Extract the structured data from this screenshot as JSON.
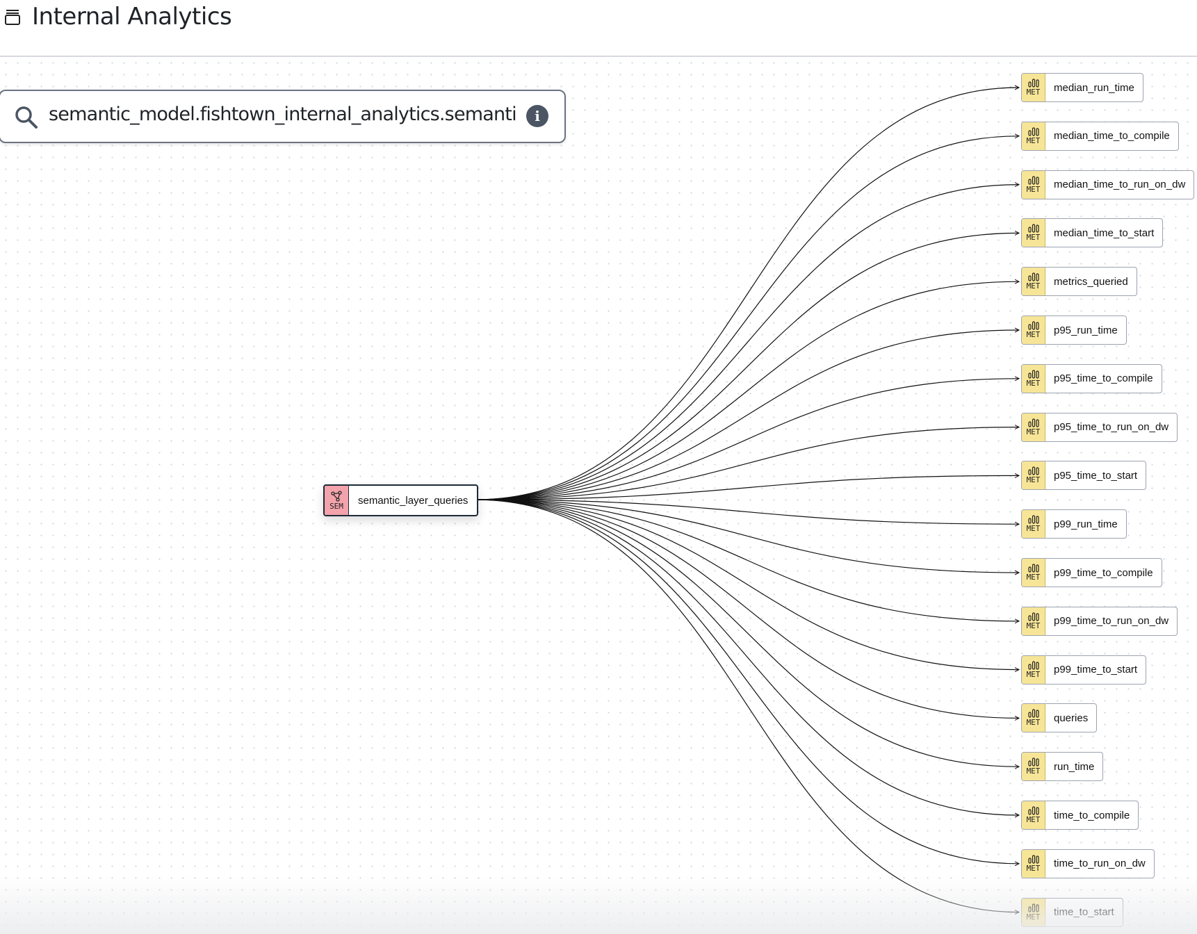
{
  "header": {
    "title": "Internal Analytics",
    "icon": "layers-icon"
  },
  "search": {
    "value": "semantic_model.fishtown_internal_analytics.semantic_layer_queries",
    "icon": "search-icon",
    "info_icon": "info-icon"
  },
  "source": {
    "badge": "SEM",
    "label": "semantic_layer_queries",
    "color": "#f2a3ab"
  },
  "metric_badge": "MET",
  "metric_color": "#f7e597",
  "metrics": [
    "median_run_time",
    "median_time_to_compile",
    "median_time_to_run_on_dw",
    "median_time_to_start",
    "metrics_queried",
    "p95_run_time",
    "p95_time_to_compile",
    "p95_time_to_run_on_dw",
    "p95_time_to_start",
    "p99_run_time",
    "p99_time_to_compile",
    "p99_time_to_run_on_dw",
    "p99_time_to_start",
    "queries",
    "run_time",
    "time_to_compile",
    "time_to_run_on_dw",
    "time_to_start"
  ]
}
